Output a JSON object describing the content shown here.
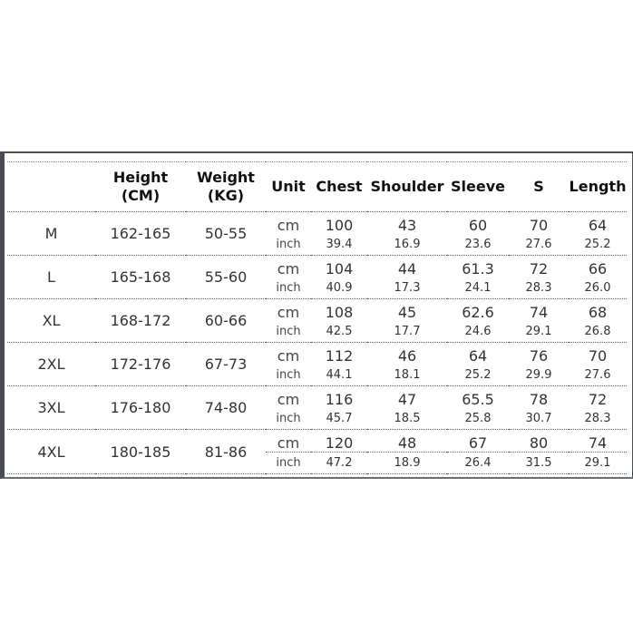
{
  "headers": {
    "size": "",
    "height": [
      "Height",
      "(CM)"
    ],
    "weight": [
      "Weight",
      "(KG)"
    ],
    "unit": "Unit",
    "chest": "Chest",
    "shoulder": "Shoulder",
    "sleeve": "Sleeve",
    "s": "S",
    "length": "Length"
  },
  "units": {
    "cm": "cm",
    "inch": "inch"
  },
  "rows": [
    {
      "size": "M",
      "height": "162-165",
      "weight": "50-55",
      "cm": [
        "100",
        "43",
        "60",
        "70",
        "64"
      ],
      "inch": [
        "39.4",
        "16.9",
        "23.6",
        "27.6",
        "25.2"
      ]
    },
    {
      "size": "L",
      "height": "165-168",
      "weight": "55-60",
      "cm": [
        "104",
        "44",
        "61.3",
        "72",
        "66"
      ],
      "inch": [
        "40.9",
        "17.3",
        "24.1",
        "28.3",
        "26.0"
      ]
    },
    {
      "size": "XL",
      "height": "168-172",
      "weight": "60-66",
      "cm": [
        "108",
        "45",
        "62.6",
        "74",
        "68"
      ],
      "inch": [
        "42.5",
        "17.7",
        "24.6",
        "29.1",
        "26.8"
      ]
    },
    {
      "size": "2XL",
      "height": "172-176",
      "weight": "67-73",
      "cm": [
        "112",
        "46",
        "64",
        "76",
        "70"
      ],
      "inch": [
        "44.1",
        "18.1",
        "25.2",
        "29.9",
        "27.6"
      ]
    },
    {
      "size": "3XL",
      "height": "176-180",
      "weight": "74-80",
      "cm": [
        "116",
        "47",
        "65.5",
        "78",
        "72"
      ],
      "inch": [
        "45.7",
        "18.5",
        "25.8",
        "30.7",
        "28.3"
      ]
    },
    {
      "size": "4XL",
      "height": "180-185",
      "weight": "81-86",
      "cm": [
        "120",
        "48",
        "67",
        "80",
        "74"
      ],
      "inch": [
        "47.2",
        "18.9",
        "26.4",
        "31.5",
        "29.1"
      ]
    }
  ]
}
